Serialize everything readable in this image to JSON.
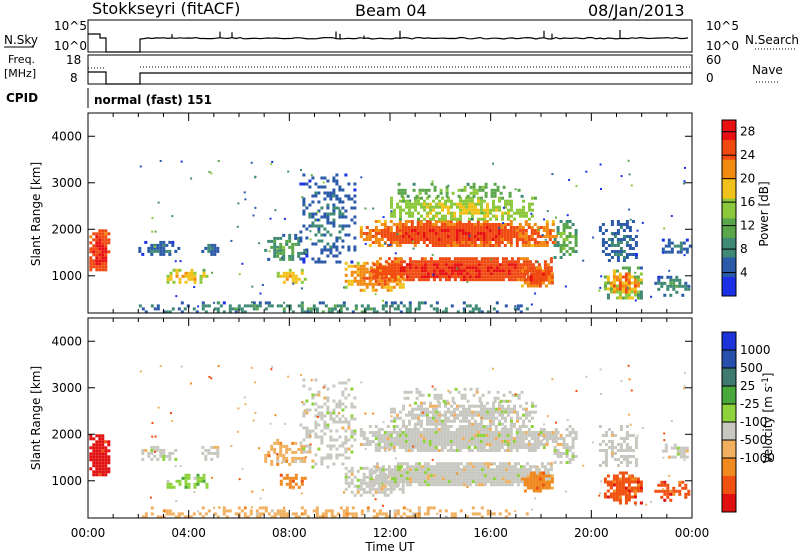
{
  "header": {
    "station": "Stokkseyri (fitACF)",
    "beam": "Beam 04",
    "date": "08/Jan/2013"
  },
  "noise_panel": {
    "left_label": "N.Sky",
    "right_label": "N.Search",
    "tick_high": "10^5",
    "tick_low": "10^0"
  },
  "freq_panel": {
    "left_label_line1": "Freq.",
    "left_label_line2": "[MHz]",
    "left_tick_high": "18",
    "left_tick_low": "8",
    "right_label": "Nave",
    "right_tick_high": "60",
    "right_tick_low": "0"
  },
  "cpid": {
    "label": "CPID",
    "value": "normal (fast) 151"
  },
  "colors": {
    "power_scale": [
      "#1a2fe6",
      "#2a5aa8",
      "#3f8a74",
      "#5aa64a",
      "#8cc83c",
      "#f2c21a",
      "#f28a12",
      "#f04a10",
      "#e81010"
    ],
    "velocity_scale": [
      "#1d33d9",
      "#2750ad",
      "#3f7a70",
      "#48a83c",
      "#8ed23c",
      "#c8c8c0",
      "#f0b060",
      "#f08a20",
      "#f05010",
      "#e01010"
    ],
    "gray": "#c4c4bc"
  },
  "chart_data": [
    {
      "type": "heatmap",
      "title": "Power",
      "xlabel": "Time UT",
      "ylabel": "Slant Range [km]",
      "x_ticks": [
        "00:00",
        "04:00",
        "08:00",
        "12:00",
        "16:00",
        "20:00",
        "00:00"
      ],
      "y_ticks": [
        "1000",
        "2000",
        "3000",
        "4000"
      ],
      "ylim": [
        200,
        4500
      ],
      "colorbar": {
        "label": "Power [dB]",
        "ticks": [
          "4",
          "8",
          "12",
          "16",
          "20",
          "24",
          "28"
        ],
        "range": [
          0,
          30
        ]
      }
    },
    {
      "type": "heatmap",
      "title": "Velocity",
      "xlabel": "Time UT",
      "ylabel": "Slant Range [km]",
      "x_ticks": [
        "00:00",
        "04:00",
        "08:00",
        "12:00",
        "16:00",
        "20:00",
        "00:00"
      ],
      "y_ticks": [
        "1000",
        "2000",
        "3000",
        "4000"
      ],
      "ylim": [
        200,
        4500
      ],
      "colorbar": {
        "label": "Velocity [m s^-1]",
        "ticks": [
          "1000",
          "500",
          "25",
          "-25",
          "-100",
          "-500",
          "-1000"
        ]
      }
    }
  ]
}
